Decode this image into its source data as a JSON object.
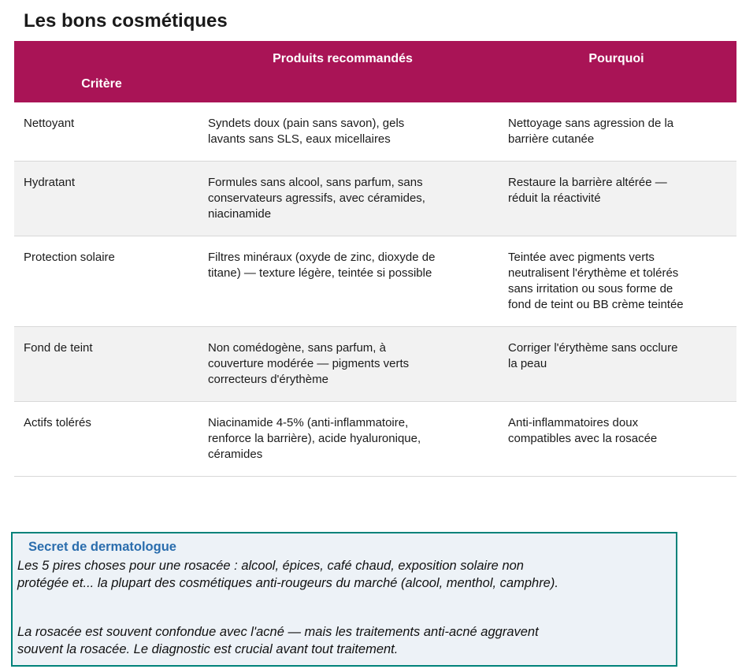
{
  "page": {
    "title": "Les bons cosmétiques"
  },
  "table": {
    "headers": [
      "Critère",
      "Produits recommandés",
      "Pourquoi"
    ],
    "rows": [
      {
        "critere": "Nettoyant",
        "produits": "Syndets doux (pain sans savon), gels\nlavants sans SLS, eaux micellaires",
        "pourquoi": "Nettoyage sans agression de la\nbarrière cutanée"
      },
      {
        "critere": "Hydratant",
        "produits": "Formules sans alcool, sans parfum, sans\nconservateurs agressifs, avec céramides,\nniacinamide",
        "pourquoi": "Restaure la barrière altérée —\nréduit la réactivité"
      },
      {
        "critere": "Protection solaire",
        "produits": "Filtres minéraux (oxyde de zinc, dioxyde de\ntitane) — texture légère, teintée si possible",
        "pourquoi": "Teintée avec pigments verts\nneutralisent l'érythème et tolérés\nsans irritation ou sous forme de\nfond de teint ou BB crème teintée"
      },
      {
        "critere": "Fond de teint",
        "produits": "Non comédogène, sans parfum, à\ncouverture modérée — pigments verts\ncorrecteurs d'érythème",
        "pourquoi": "Corriger l'érythème sans occlure\nla peau"
      },
      {
        "critere": "Actifs tolérés",
        "produits": "Niacinamide 4-5% (anti-inflammatoire,\nrenforce la barrière), acide hyaluronique,\ncéramides",
        "pourquoi": "Anti-inflammatoires doux\ncompatibles avec la rosacée"
      }
    ]
  },
  "callout": {
    "title": "Secret de dermatologue",
    "paragraphs": [
      "Les 5 pires choses pour une rosacée : alcool, épices, café chaud, exposition solaire non\nprotégée et... la plupart des cosmétiques anti-rougeurs du marché (alcool, menthol, camphre).",
      "La rosacée est souvent confondue avec l'acné — mais les traitements anti-acné aggravent\nsouvent la rosacée. Le diagnostic est crucial avant tout traitement."
    ]
  },
  "colors": {
    "table_header_bg": "#a91456",
    "table_header_text": "#ffffff",
    "row_alt_bg": "#f2f2f2",
    "row_divider": "#d8d8d8",
    "callout_border": "#00827a",
    "callout_bg": "#edf2f7",
    "callout_title_text": "#2a6dad",
    "body_text": "#1b1b1b"
  }
}
